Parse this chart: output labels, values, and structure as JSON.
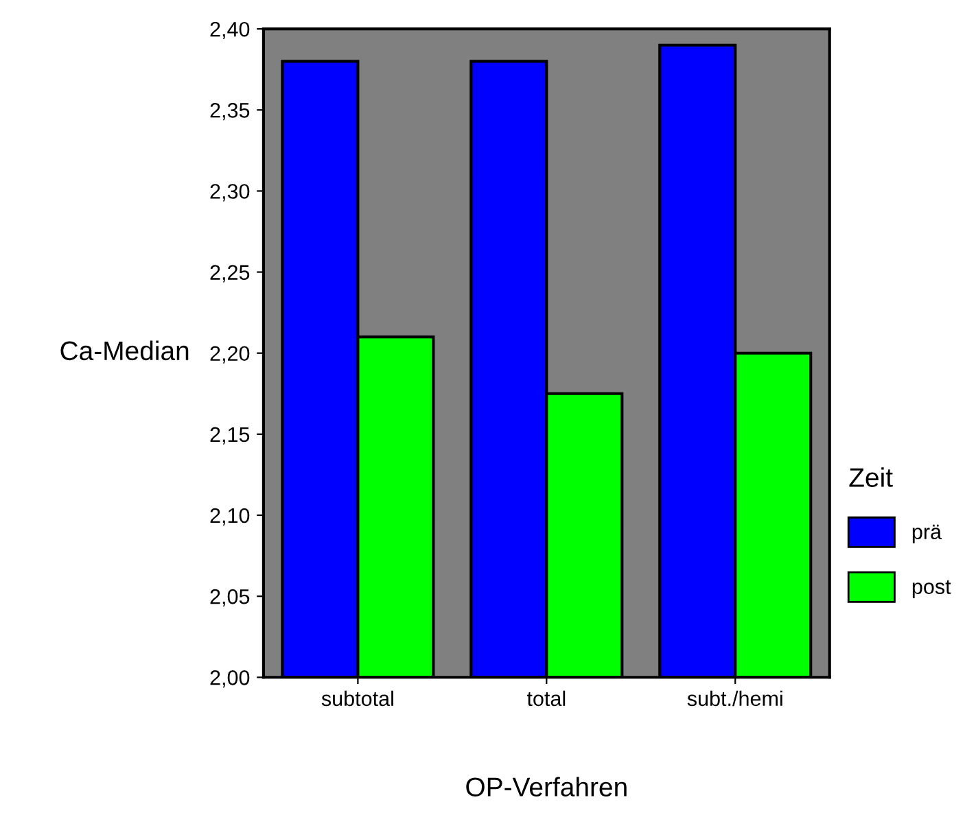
{
  "chart_data": {
    "type": "bar",
    "xlabel": "OP-Verfahren",
    "ylabel": "Ca-Median",
    "legend_title": "Zeit",
    "categories": [
      "subtotal",
      "total",
      "subt./hemi"
    ],
    "series": [
      {
        "name": "prä",
        "color": "#0000ff",
        "values": [
          2.38,
          2.38,
          2.39
        ]
      },
      {
        "name": "post",
        "color": "#00ff00",
        "values": [
          2.21,
          2.175,
          2.2
        ]
      }
    ],
    "ylim": [
      2.0,
      2.4
    ],
    "yticks": [
      {
        "value": 2.0,
        "label": "2,00"
      },
      {
        "value": 2.05,
        "label": "2,05"
      },
      {
        "value": 2.1,
        "label": "2,10"
      },
      {
        "value": 2.15,
        "label": "2,15"
      },
      {
        "value": 2.2,
        "label": "2,20"
      },
      {
        "value": 2.25,
        "label": "2,25"
      },
      {
        "value": 2.3,
        "label": "2,30"
      },
      {
        "value": 2.35,
        "label": "2,35"
      },
      {
        "value": 2.4,
        "label": "2,40"
      }
    ],
    "legend": "right",
    "grid": false
  }
}
